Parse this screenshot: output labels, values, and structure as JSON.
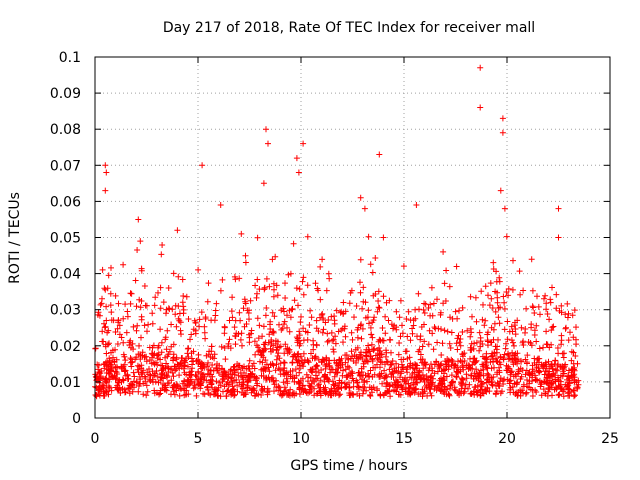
{
  "chart_data": {
    "type": "scatter",
    "title": "Day 217 of 2018, Rate Of TEC Index for receiver mall",
    "xlabel": "GPS time / hours",
    "ylabel": "ROTI / TECUs",
    "xlim": [
      0,
      25
    ],
    "ylim": [
      0,
      0.1
    ],
    "xticks": [
      0,
      5,
      10,
      15,
      20,
      25
    ],
    "xtick_labels": [
      "0",
      "5",
      "10",
      "15",
      "20",
      "25"
    ],
    "yticks": [
      0,
      0.01,
      0.02,
      0.03,
      0.04,
      0.05,
      0.06,
      0.07,
      0.08,
      0.09,
      0.1
    ],
    "ytick_labels": [
      "0",
      "0.01",
      "0.02",
      "0.03",
      "0.04",
      "0.05",
      "0.06",
      "0.07",
      "0.08",
      "0.09",
      "0.1"
    ],
    "grid": true,
    "marker": "+",
    "color": "#ff0000",
    "data_range_hours": [
      0,
      23.5
    ],
    "notable_points": [
      {
        "x": 0.5,
        "y": 0.07
      },
      {
        "x": 0.55,
        "y": 0.068
      },
      {
        "x": 0.5,
        "y": 0.063
      },
      {
        "x": 2.1,
        "y": 0.055
      },
      {
        "x": 4.0,
        "y": 0.052
      },
      {
        "x": 5.2,
        "y": 0.07
      },
      {
        "x": 6.1,
        "y": 0.059
      },
      {
        "x": 8.3,
        "y": 0.08
      },
      {
        "x": 8.4,
        "y": 0.076
      },
      {
        "x": 8.2,
        "y": 0.065
      },
      {
        "x": 9.8,
        "y": 0.072
      },
      {
        "x": 9.9,
        "y": 0.068
      },
      {
        "x": 10.1,
        "y": 0.076
      },
      {
        "x": 12.9,
        "y": 0.061
      },
      {
        "x": 13.8,
        "y": 0.073
      },
      {
        "x": 15.6,
        "y": 0.059
      },
      {
        "x": 18.7,
        "y": 0.097
      },
      {
        "x": 18.7,
        "y": 0.086
      },
      {
        "x": 19.8,
        "y": 0.083
      },
      {
        "x": 19.8,
        "y": 0.079
      },
      {
        "x": 19.7,
        "y": 0.063
      },
      {
        "x": 19.9,
        "y": 0.058
      },
      {
        "x": 22.5,
        "y": 0.058
      },
      {
        "x": 22.5,
        "y": 0.05
      },
      {
        "x": 13.1,
        "y": 0.058
      },
      {
        "x": 14.0,
        "y": 0.05
      },
      {
        "x": 21.2,
        "y": 0.044
      },
      {
        "x": 16.9,
        "y": 0.046
      },
      {
        "x": 2.2,
        "y": 0.049
      },
      {
        "x": 7.1,
        "y": 0.051
      }
    ],
    "activity_envelope": [
      {
        "x": 0.0,
        "base": 0.012,
        "peak": 0.028
      },
      {
        "x": 0.5,
        "base": 0.014,
        "peak": 0.036
      },
      {
        "x": 1.5,
        "base": 0.014,
        "peak": 0.032
      },
      {
        "x": 2.2,
        "base": 0.016,
        "peak": 0.042
      },
      {
        "x": 3.5,
        "base": 0.016,
        "peak": 0.036
      },
      {
        "x": 4.5,
        "base": 0.015,
        "peak": 0.034
      },
      {
        "x": 5.5,
        "base": 0.013,
        "peak": 0.028
      },
      {
        "x": 6.5,
        "base": 0.012,
        "peak": 0.03
      },
      {
        "x": 7.5,
        "base": 0.014,
        "peak": 0.034
      },
      {
        "x": 8.4,
        "base": 0.02,
        "peak": 0.045
      },
      {
        "x": 9.5,
        "base": 0.017,
        "peak": 0.04
      },
      {
        "x": 10.5,
        "base": 0.016,
        "peak": 0.04
      },
      {
        "x": 11.5,
        "base": 0.014,
        "peak": 0.03
      },
      {
        "x": 12.5,
        "base": 0.016,
        "peak": 0.036
      },
      {
        "x": 13.5,
        "base": 0.018,
        "peak": 0.042
      },
      {
        "x": 14.5,
        "base": 0.014,
        "peak": 0.032
      },
      {
        "x": 15.5,
        "base": 0.013,
        "peak": 0.03
      },
      {
        "x": 16.5,
        "base": 0.014,
        "peak": 0.034
      },
      {
        "x": 17.5,
        "base": 0.014,
        "peak": 0.032
      },
      {
        "x": 18.5,
        "base": 0.015,
        "peak": 0.034
      },
      {
        "x": 19.5,
        "base": 0.018,
        "peak": 0.042
      },
      {
        "x": 20.5,
        "base": 0.015,
        "peak": 0.036
      },
      {
        "x": 21.5,
        "base": 0.014,
        "peak": 0.036
      },
      {
        "x": 22.5,
        "base": 0.013,
        "peak": 0.032
      },
      {
        "x": 23.5,
        "base": 0.011,
        "peak": 0.03
      }
    ]
  }
}
